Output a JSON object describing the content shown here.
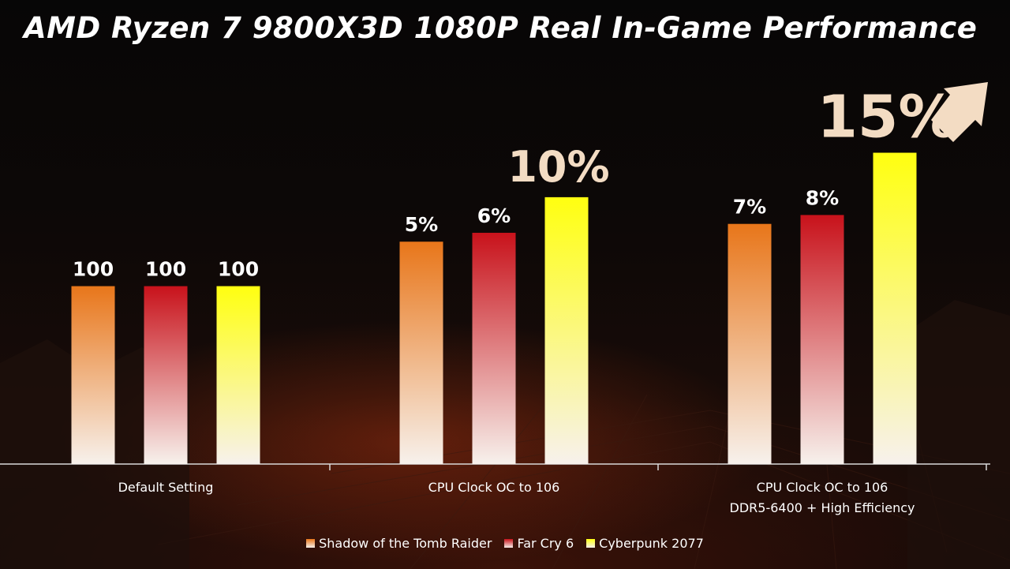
{
  "title": "AMD Ryzen 7 9800X3D 1080P Real In-Game Performance",
  "chart_data": {
    "type": "bar",
    "title": "AMD Ryzen 7 9800X3D 1080P Real In-Game Performance",
    "categories": [
      [
        "Default Setting"
      ],
      [
        "CPU Clock OC to 106"
      ],
      [
        "CPU Clock OC to 106",
        "DDR5-6400 + High Efficiency"
      ]
    ],
    "series": [
      {
        "name": "Shadow of the Tomb Raider",
        "color": "#e8761a",
        "values": [
          100,
          105,
          107
        ],
        "labels": [
          "100",
          "5%",
          "7%"
        ]
      },
      {
        "name": "Far Cry 6",
        "color": "#c8121b",
        "values": [
          100,
          106,
          108
        ],
        "labels": [
          "100",
          "6%",
          "8%"
        ]
      },
      {
        "name": "Cyberpunk 2077",
        "color": "#ffff10",
        "values": [
          100,
          110,
          115
        ],
        "labels": [
          "100",
          "10%",
          "15%"
        ]
      }
    ],
    "ylim": [
      80,
      117
    ],
    "xlabel": "",
    "ylabel": "",
    "grid": false,
    "legend_position": "bottom",
    "callouts": [
      "10%",
      "15%"
    ]
  }
}
